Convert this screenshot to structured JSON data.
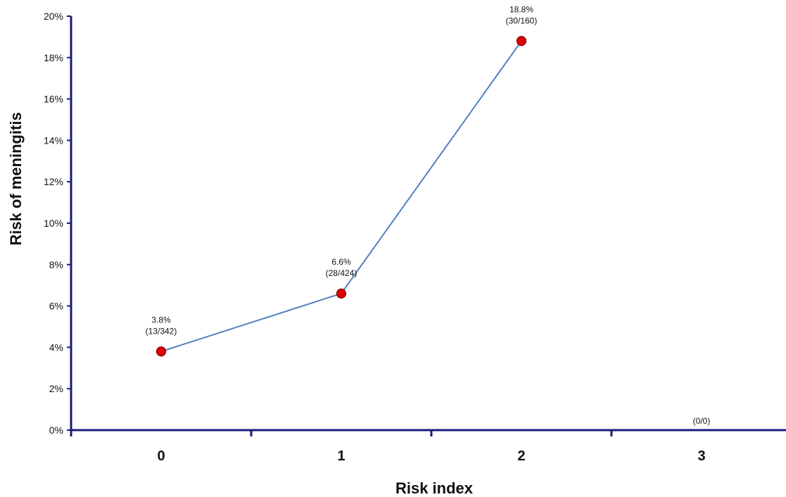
{
  "chart_data": {
    "type": "line",
    "title": "",
    "xlabel": "Risk index",
    "ylabel": "Risk of meningitis",
    "categories": [
      "0",
      "1",
      "2",
      "3"
    ],
    "y_ticks": [
      "0%",
      "2%",
      "4%",
      "6%",
      "8%",
      "10%",
      "12%",
      "14%",
      "16%",
      "18%",
      "20%"
    ],
    "ylim": [
      0,
      20
    ],
    "grid": false,
    "series": [
      {
        "values": [
          3.8,
          6.6,
          18.8,
          null
        ],
        "labels": [
          [
            "3.8%",
            "(13/342)"
          ],
          [
            "6.6%",
            "(28/424)"
          ],
          [
            "18.8%",
            "(30/160)"
          ],
          [
            "(0/0)"
          ]
        ]
      }
    ],
    "colors": {
      "axis": "#1a1a7a",
      "line": "#4f81bd",
      "marker_fill": "#e00000",
      "marker_stroke": "#7a0000"
    }
  }
}
